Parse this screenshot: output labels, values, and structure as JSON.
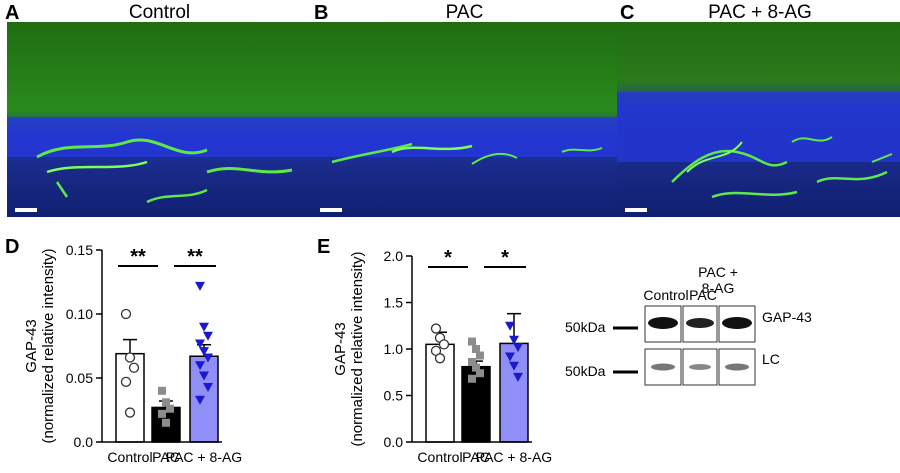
{
  "panels": {
    "A": {
      "letter": "A",
      "title": "Control"
    },
    "B": {
      "letter": "B",
      "title": "PAC"
    },
    "C": {
      "letter": "C",
      "title": "PAC + 8-AG"
    },
    "D": {
      "letter": "D"
    },
    "E": {
      "letter": "E"
    }
  },
  "colors": {
    "control_bar": "#ffffff",
    "pac_bar": "#000000",
    "pac8ag_bar": "#8f8ff7",
    "control_marker": "#ffffff",
    "pac_marker": "#8c8c8c",
    "pac8ag_marker": "#1a1acc",
    "tissue_green": "#2e8a1a",
    "nuclei_blue": "#2a3ddc"
  },
  "chart_data": [
    {
      "type": "bar",
      "panel": "D",
      "categories": [
        "Control",
        "PAC",
        "PAC + 8-AG"
      ],
      "values": [
        0.069,
        0.027,
        0.067
      ],
      "errors": [
        0.011,
        0.005,
        0.009
      ],
      "points": [
        [
          0.1,
          0.066,
          0.058,
          0.047,
          0.023
        ],
        [
          0.04,
          0.031,
          0.026,
          0.022,
          0.015
        ],
        [
          0.122,
          0.09,
          0.083,
          0.077,
          0.071,
          0.066,
          0.06,
          0.052,
          0.043,
          0.033
        ]
      ],
      "markers": [
        "circle",
        "square",
        "triangle-down"
      ],
      "ylabel": "GAP-43",
      "ylabel2": "(normalized relative intensity)",
      "ylim": [
        0,
        0.15
      ],
      "yticks": [
        "0.0",
        "0.05",
        "0.10",
        "0.15"
      ],
      "yticks_values": [
        0,
        0.05,
        0.1,
        0.15
      ],
      "significance": [
        {
          "from": 0,
          "to": 1,
          "label": "**"
        },
        {
          "from": 1,
          "to": 2,
          "label": "**"
        }
      ]
    },
    {
      "type": "bar",
      "panel": "E",
      "categories": [
        "Control",
        "PAC",
        "PAC + 8-AG"
      ],
      "values": [
        1.05,
        0.81,
        1.06
      ],
      "errors": [
        0.13,
        0.06,
        0.32
      ],
      "points": [
        [
          1.22,
          1.12,
          1.05,
          0.98,
          0.9
        ],
        [
          1.08,
          1.0,
          0.93,
          0.86,
          0.8,
          0.74,
          0.68
        ],
        [
          1.25,
          1.1,
          1.02,
          0.92,
          0.82,
          0.7
        ]
      ],
      "markers": [
        "circle",
        "square",
        "triangle-down"
      ],
      "ylabel": "GAP-43",
      "ylabel2": "(normalized relative intensity)",
      "ylim": [
        0,
        2.0
      ],
      "yticks": [
        "0.0",
        "0.5",
        "1.0",
        "1.5",
        "2.0"
      ],
      "yticks_values": [
        0,
        0.5,
        1.0,
        1.5,
        2.0
      ],
      "significance": [
        {
          "from": 0,
          "to": 1,
          "label": "*"
        },
        {
          "from": 1,
          "to": 2,
          "label": "*"
        }
      ]
    }
  ],
  "blot": {
    "lanes": [
      "Control",
      "PAC",
      "PAC +",
      "8-AG"
    ],
    "rows": [
      {
        "marker": "50kDa",
        "label": "GAP-43"
      },
      {
        "marker": "50kDa",
        "label": "LC"
      }
    ]
  }
}
